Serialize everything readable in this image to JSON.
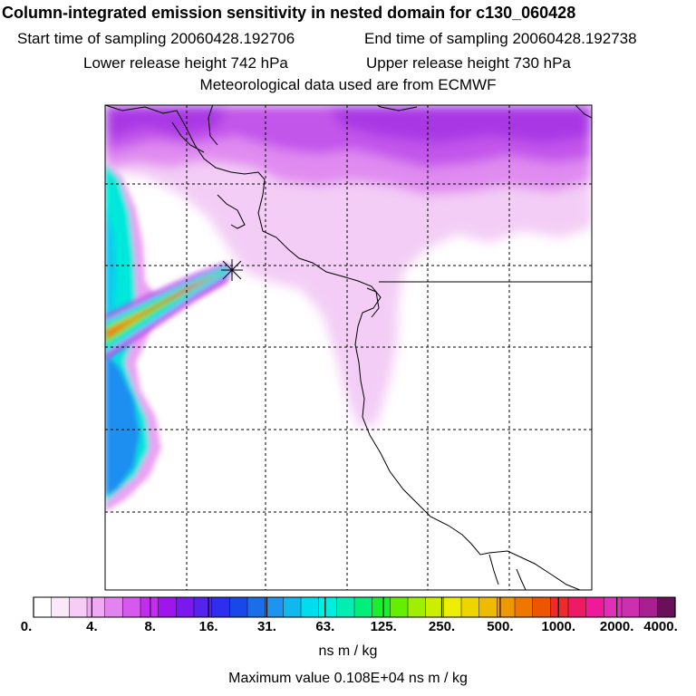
{
  "header": {
    "title": "Column-integrated emission sensitivity in nested domain for c130_060428",
    "start_label": "Start time of sampling 20060428.192706",
    "end_label": "End time of sampling 20060428.192738",
    "lower_label": "Lower release height  742 hPa",
    "upper_label": "Upper release height  730 hPa",
    "met_label": "Meteorological data used are from ECMWF"
  },
  "colorbar": {
    "tick_labels": [
      "0.",
      "4.",
      "8.",
      "16.",
      "31.",
      "63.",
      "125.",
      "250.",
      "500.",
      "1000.",
      "2000.",
      "4000."
    ],
    "colors": [
      "#ffffff",
      "#fbe8fb",
      "#f7ccf7",
      "#f0aaf3",
      "#e383f0",
      "#d559ee",
      "#c12eee",
      "#9e15ee",
      "#7a18ee",
      "#5523ee",
      "#2e2eee",
      "#1848e8",
      "#1a6ee8",
      "#1e94f0",
      "#10b8ee",
      "#00ddee",
      "#00eedd",
      "#00eeb4",
      "#00ee7a",
      "#1aee2e",
      "#66ee00",
      "#a0ee00",
      "#ccee00",
      "#eeee00",
      "#eed500",
      "#eebb00",
      "#ee9900",
      "#ee7700",
      "#ee5500",
      "#ee2a2a",
      "#ee1a66",
      "#ee1a99",
      "#e22fb9",
      "#cc2fb0",
      "#a81f90",
      "#6a0f5a"
    ],
    "units": "ns m / kg"
  },
  "max_value_label": "Maximum value  0.108E+04 ns m / kg",
  "map": {
    "release_marker": "release-point-star-icon",
    "background_color": "#ffffff",
    "field_colors": {
      "light_pink": "#f7d5f7",
      "pink": "#ecaaf3",
      "violet": "#d46aee",
      "purple": "#b94ae8",
      "cyan": "#00eedd",
      "aqua": "#10c8ee",
      "blue": "#1e8ff0",
      "green": "#30ee60",
      "yellow": "#eeee00",
      "orange": "#ee8800",
      "red": "#ee2a2a"
    }
  }
}
